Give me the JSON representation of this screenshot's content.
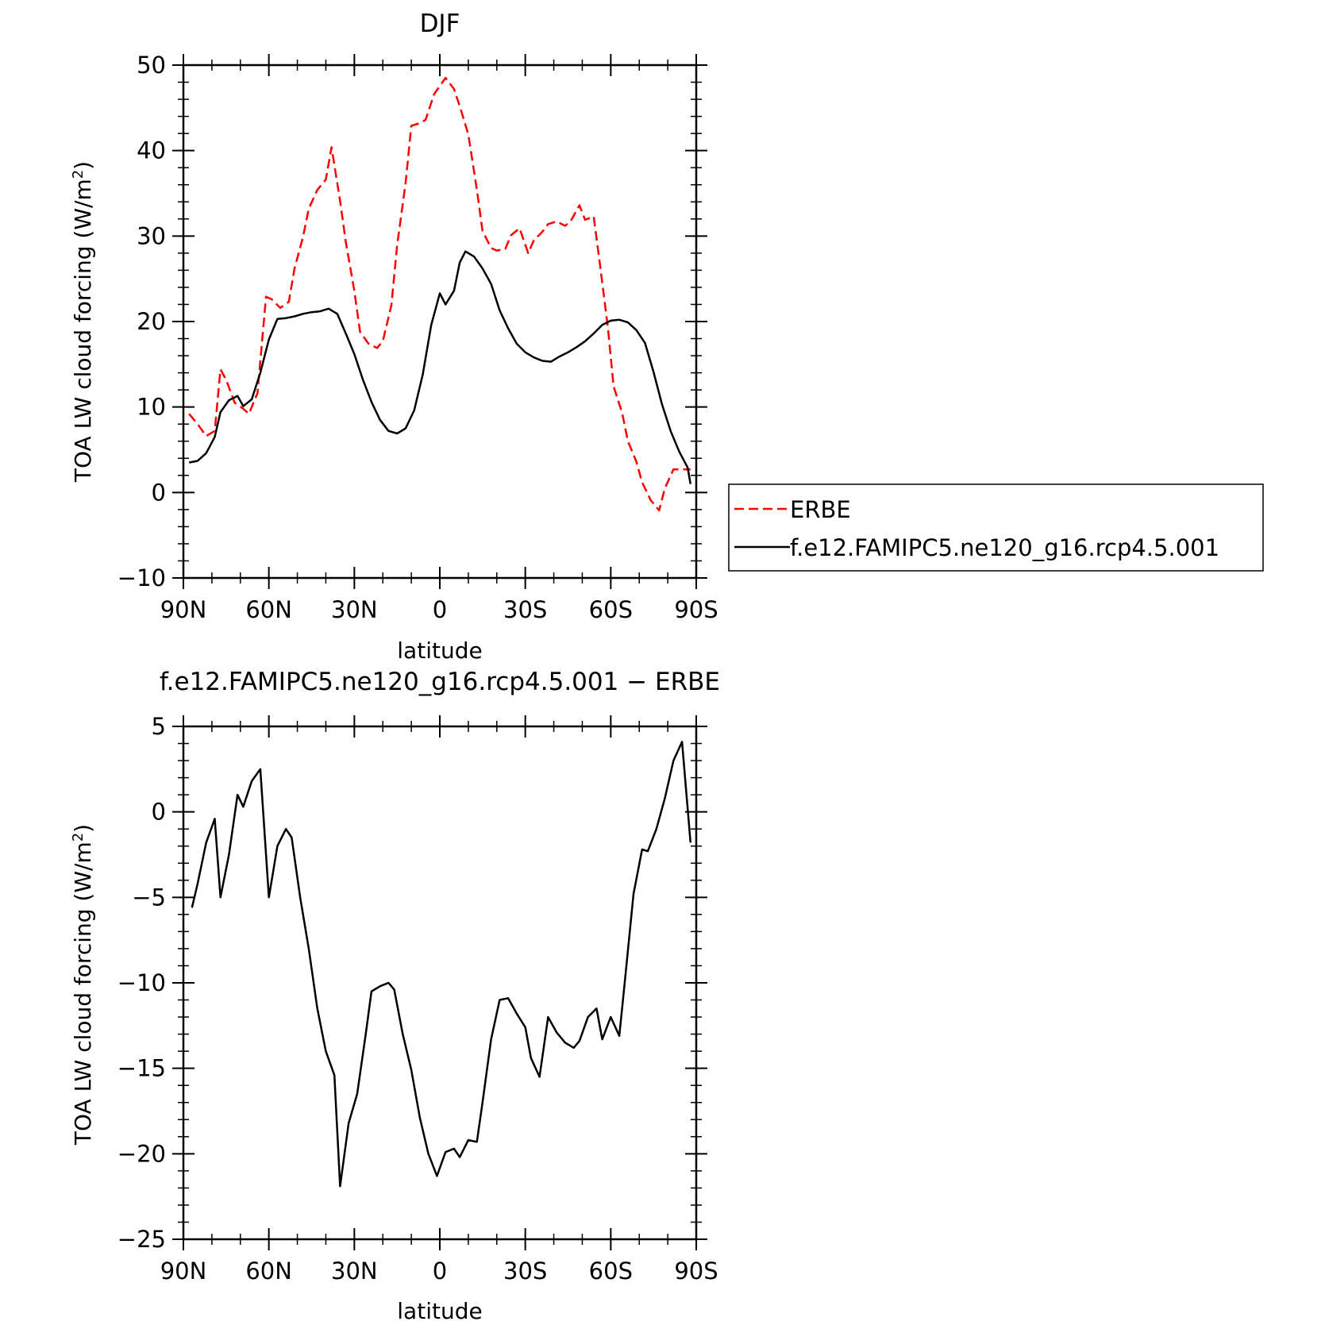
{
  "chart_data": [
    {
      "type": "line",
      "title": "DJF",
      "xlabel": "latitude",
      "ylabel": "TOA LW cloud forcing (W/m",
      "ylabel_sup": "2",
      "ylabel_end": ")",
      "xlim": [
        -90,
        90
      ],
      "ylim": [
        -10,
        50
      ],
      "x_ticks": [
        -90,
        -60,
        -30,
        0,
        30,
        60,
        90
      ],
      "x_tick_labels": [
        "90N",
        "60N",
        "30N",
        "0",
        "30S",
        "60S",
        "90S"
      ],
      "y_ticks": [
        -10,
        0,
        10,
        20,
        30,
        40,
        50
      ],
      "y_tick_labels": [
        "−10",
        "0",
        "10",
        "20",
        "30",
        "40",
        "50"
      ],
      "grid": false,
      "legend_position": "right",
      "series": [
        {
          "name": "ERBE",
          "color": "#ff0000",
          "dash": true,
          "x": [
            -88,
            -85,
            -82,
            -79,
            -77,
            -75,
            -72,
            -69,
            -67,
            -64,
            -61,
            -59,
            -56,
            -53,
            -51,
            -48,
            -46,
            -43,
            -40,
            -38,
            -35,
            -33,
            -30,
            -28,
            -25,
            -22,
            -20,
            -17,
            -15,
            -12,
            -10,
            -7,
            -5,
            -2,
            2,
            5,
            7,
            10,
            13,
            15,
            18,
            20,
            23,
            25,
            28,
            31,
            33,
            36,
            38,
            41,
            44,
            46,
            49,
            51,
            54,
            56,
            59,
            61,
            64,
            66,
            69,
            71,
            74,
            77,
            79,
            82,
            84,
            87,
            88
          ],
          "y": [
            9.2,
            8.0,
            6.6,
            7.2,
            14.4,
            13.2,
            10.5,
            9.8,
            9.2,
            11.6,
            22.9,
            22.6,
            21.6,
            22.3,
            26.2,
            29.9,
            33.2,
            35.4,
            36.6,
            40.4,
            34.1,
            29.3,
            23.6,
            18.8,
            17.4,
            16.9,
            17.7,
            21.9,
            28.9,
            36.2,
            42.9,
            43.2,
            43.6,
            46.6,
            48.5,
            47.2,
            45.2,
            41.9,
            35.4,
            30.6,
            28.6,
            28.3,
            28.5,
            30.1,
            30.9,
            28.0,
            29.5,
            30.5,
            31.4,
            31.7,
            31.2,
            31.8,
            33.6,
            31.9,
            32.3,
            27.2,
            19.3,
            12.4,
            9.3,
            6.0,
            3.6,
            1.2,
            -0.9,
            -2.1,
            0.5,
            2.7,
            2.7,
            2.7,
            2.7
          ]
        },
        {
          "name": "f.e12.FAMIPC5.ne120_g16.rcp4.5.001",
          "color": "#000000",
          "dash": false,
          "x": [
            -88,
            -85,
            -82,
            -79,
            -77,
            -74,
            -71,
            -69,
            -66,
            -63,
            -60,
            -57,
            -54,
            -51,
            -48,
            -45,
            -42,
            -39,
            -36,
            -33,
            -30,
            -27,
            -24,
            -21,
            -18,
            -15,
            -12,
            -9,
            -6,
            -3,
            0,
            2,
            5,
            7,
            9,
            12,
            15,
            18,
            21,
            24,
            27,
            30,
            33,
            36,
            39,
            42,
            45,
            48,
            51,
            54,
            57,
            60,
            63,
            66,
            69,
            72,
            75,
            78,
            81,
            84,
            87,
            88
          ],
          "y": [
            3.5,
            3.7,
            4.6,
            6.5,
            9.4,
            10.8,
            11.3,
            10.1,
            10.9,
            14.0,
            17.9,
            20.3,
            20.4,
            20.6,
            20.9,
            21.1,
            21.2,
            21.5,
            20.9,
            18.6,
            16.2,
            13.2,
            10.6,
            8.5,
            7.2,
            6.9,
            7.5,
            9.6,
            13.8,
            19.6,
            23.3,
            22.0,
            23.6,
            26.9,
            28.2,
            27.6,
            26.2,
            24.4,
            21.3,
            19.2,
            17.4,
            16.4,
            15.8,
            15.4,
            15.3,
            15.9,
            16.4,
            17.0,
            17.7,
            18.6,
            19.6,
            20.1,
            20.2,
            19.9,
            19.0,
            17.5,
            14.1,
            10.3,
            7.2,
            4.8,
            2.9,
            1.0
          ]
        }
      ]
    },
    {
      "type": "line",
      "title": "f.e12.FAMIPC5.ne120_g16.rcp4.5.001 − ERBE",
      "xlabel": "latitude",
      "ylabel": "TOA LW cloud forcing (W/m",
      "ylabel_sup": "2",
      "ylabel_end": ")",
      "xlim": [
        -90,
        90
      ],
      "ylim": [
        -25,
        5
      ],
      "x_ticks": [
        -90,
        -60,
        -30,
        0,
        30,
        60,
        90
      ],
      "x_tick_labels": [
        "90N",
        "60N",
        "30N",
        "0",
        "30S",
        "60S",
        "90S"
      ],
      "y_ticks": [
        -25,
        -20,
        -15,
        -10,
        -5,
        0,
        5
      ],
      "y_tick_labels": [
        "−25",
        "−20",
        "−15",
        "−10",
        "−5",
        "0",
        "5"
      ],
      "grid": false,
      "series": [
        {
          "color": "#000000",
          "dash": false,
          "x": [
            -87,
            -85,
            -82,
            -79,
            -77,
            -74,
            -71,
            -69,
            -66,
            -63,
            -60,
            -57,
            -54,
            -52,
            -49,
            -46,
            -43,
            -40,
            -37,
            -35,
            -32,
            -29,
            -26,
            -24,
            -21,
            -18,
            -16,
            -13,
            -10,
            -7,
            -4,
            -1,
            2,
            5,
            7,
            10,
            13,
            15,
            18,
            21,
            24,
            27,
            30,
            32,
            35,
            38,
            41,
            44,
            47,
            49,
            52,
            55,
            57,
            60,
            63,
            65,
            68,
            71,
            73,
            76,
            79,
            82,
            85,
            88
          ],
          "y": [
            -5.6,
            -4.2,
            -1.8,
            -0.4,
            -5.0,
            -2.5,
            1.0,
            0.3,
            1.8,
            2.5,
            -5.0,
            -2.0,
            -1.0,
            -1.5,
            -5.0,
            -8.0,
            -11.5,
            -14.0,
            -15.4,
            -21.9,
            -18.2,
            -16.5,
            -13.0,
            -10.5,
            -10.2,
            -10.0,
            -10.4,
            -13.0,
            -15.1,
            -17.9,
            -20.0,
            -21.3,
            -19.9,
            -19.7,
            -20.2,
            -19.2,
            -19.3,
            -17.0,
            -13.3,
            -11.0,
            -10.9,
            -11.8,
            -12.6,
            -14.4,
            -15.5,
            -12.0,
            -12.9,
            -13.5,
            -13.8,
            -13.4,
            -12.0,
            -11.5,
            -13.3,
            -12.0,
            -13.1,
            -9.8,
            -4.8,
            -2.2,
            -2.3,
            -1.0,
            0.8,
            3.0,
            4.1,
            -1.8
          ]
        }
      ]
    }
  ]
}
